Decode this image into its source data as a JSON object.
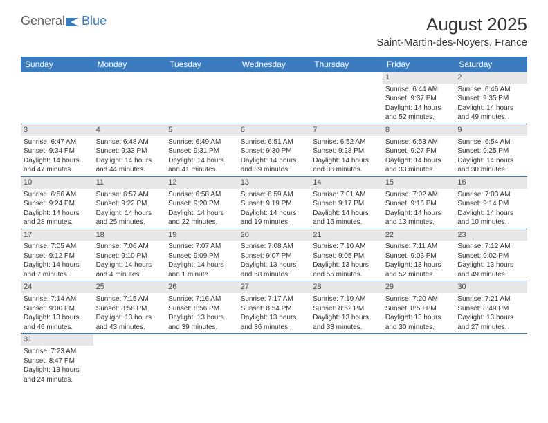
{
  "logo": {
    "text1": "General",
    "text2": "Blue"
  },
  "title": "August 2025",
  "location": "Saint-Martin-des-Noyers, France",
  "weekdays": [
    "Sunday",
    "Monday",
    "Tuesday",
    "Wednesday",
    "Thursday",
    "Friday",
    "Saturday"
  ],
  "colors": {
    "header_bg": "#3b7bbf",
    "header_fg": "#ffffff",
    "daynum_bg": "#e8e8e8",
    "row_border": "#3b7bbf",
    "text": "#333333"
  },
  "grid": [
    [
      null,
      null,
      null,
      null,
      null,
      {
        "n": "1",
        "sr": "Sunrise: 6:44 AM",
        "ss": "Sunset: 9:37 PM",
        "dl1": "Daylight: 14 hours",
        "dl2": "and 52 minutes."
      },
      {
        "n": "2",
        "sr": "Sunrise: 6:46 AM",
        "ss": "Sunset: 9:35 PM",
        "dl1": "Daylight: 14 hours",
        "dl2": "and 49 minutes."
      }
    ],
    [
      {
        "n": "3",
        "sr": "Sunrise: 6:47 AM",
        "ss": "Sunset: 9:34 PM",
        "dl1": "Daylight: 14 hours",
        "dl2": "and 47 minutes."
      },
      {
        "n": "4",
        "sr": "Sunrise: 6:48 AM",
        "ss": "Sunset: 9:33 PM",
        "dl1": "Daylight: 14 hours",
        "dl2": "and 44 minutes."
      },
      {
        "n": "5",
        "sr": "Sunrise: 6:49 AM",
        "ss": "Sunset: 9:31 PM",
        "dl1": "Daylight: 14 hours",
        "dl2": "and 41 minutes."
      },
      {
        "n": "6",
        "sr": "Sunrise: 6:51 AM",
        "ss": "Sunset: 9:30 PM",
        "dl1": "Daylight: 14 hours",
        "dl2": "and 39 minutes."
      },
      {
        "n": "7",
        "sr": "Sunrise: 6:52 AM",
        "ss": "Sunset: 9:28 PM",
        "dl1": "Daylight: 14 hours",
        "dl2": "and 36 minutes."
      },
      {
        "n": "8",
        "sr": "Sunrise: 6:53 AM",
        "ss": "Sunset: 9:27 PM",
        "dl1": "Daylight: 14 hours",
        "dl2": "and 33 minutes."
      },
      {
        "n": "9",
        "sr": "Sunrise: 6:54 AM",
        "ss": "Sunset: 9:25 PM",
        "dl1": "Daylight: 14 hours",
        "dl2": "and 30 minutes."
      }
    ],
    [
      {
        "n": "10",
        "sr": "Sunrise: 6:56 AM",
        "ss": "Sunset: 9:24 PM",
        "dl1": "Daylight: 14 hours",
        "dl2": "and 28 minutes."
      },
      {
        "n": "11",
        "sr": "Sunrise: 6:57 AM",
        "ss": "Sunset: 9:22 PM",
        "dl1": "Daylight: 14 hours",
        "dl2": "and 25 minutes."
      },
      {
        "n": "12",
        "sr": "Sunrise: 6:58 AM",
        "ss": "Sunset: 9:20 PM",
        "dl1": "Daylight: 14 hours",
        "dl2": "and 22 minutes."
      },
      {
        "n": "13",
        "sr": "Sunrise: 6:59 AM",
        "ss": "Sunset: 9:19 PM",
        "dl1": "Daylight: 14 hours",
        "dl2": "and 19 minutes."
      },
      {
        "n": "14",
        "sr": "Sunrise: 7:01 AM",
        "ss": "Sunset: 9:17 PM",
        "dl1": "Daylight: 14 hours",
        "dl2": "and 16 minutes."
      },
      {
        "n": "15",
        "sr": "Sunrise: 7:02 AM",
        "ss": "Sunset: 9:16 PM",
        "dl1": "Daylight: 14 hours",
        "dl2": "and 13 minutes."
      },
      {
        "n": "16",
        "sr": "Sunrise: 7:03 AM",
        "ss": "Sunset: 9:14 PM",
        "dl1": "Daylight: 14 hours",
        "dl2": "and 10 minutes."
      }
    ],
    [
      {
        "n": "17",
        "sr": "Sunrise: 7:05 AM",
        "ss": "Sunset: 9:12 PM",
        "dl1": "Daylight: 14 hours",
        "dl2": "and 7 minutes."
      },
      {
        "n": "18",
        "sr": "Sunrise: 7:06 AM",
        "ss": "Sunset: 9:10 PM",
        "dl1": "Daylight: 14 hours",
        "dl2": "and 4 minutes."
      },
      {
        "n": "19",
        "sr": "Sunrise: 7:07 AM",
        "ss": "Sunset: 9:09 PM",
        "dl1": "Daylight: 14 hours",
        "dl2": "and 1 minute."
      },
      {
        "n": "20",
        "sr": "Sunrise: 7:08 AM",
        "ss": "Sunset: 9:07 PM",
        "dl1": "Daylight: 13 hours",
        "dl2": "and 58 minutes."
      },
      {
        "n": "21",
        "sr": "Sunrise: 7:10 AM",
        "ss": "Sunset: 9:05 PM",
        "dl1": "Daylight: 13 hours",
        "dl2": "and 55 minutes."
      },
      {
        "n": "22",
        "sr": "Sunrise: 7:11 AM",
        "ss": "Sunset: 9:03 PM",
        "dl1": "Daylight: 13 hours",
        "dl2": "and 52 minutes."
      },
      {
        "n": "23",
        "sr": "Sunrise: 7:12 AM",
        "ss": "Sunset: 9:02 PM",
        "dl1": "Daylight: 13 hours",
        "dl2": "and 49 minutes."
      }
    ],
    [
      {
        "n": "24",
        "sr": "Sunrise: 7:14 AM",
        "ss": "Sunset: 9:00 PM",
        "dl1": "Daylight: 13 hours",
        "dl2": "and 46 minutes."
      },
      {
        "n": "25",
        "sr": "Sunrise: 7:15 AM",
        "ss": "Sunset: 8:58 PM",
        "dl1": "Daylight: 13 hours",
        "dl2": "and 43 minutes."
      },
      {
        "n": "26",
        "sr": "Sunrise: 7:16 AM",
        "ss": "Sunset: 8:56 PM",
        "dl1": "Daylight: 13 hours",
        "dl2": "and 39 minutes."
      },
      {
        "n": "27",
        "sr": "Sunrise: 7:17 AM",
        "ss": "Sunset: 8:54 PM",
        "dl1": "Daylight: 13 hours",
        "dl2": "and 36 minutes."
      },
      {
        "n": "28",
        "sr": "Sunrise: 7:19 AM",
        "ss": "Sunset: 8:52 PM",
        "dl1": "Daylight: 13 hours",
        "dl2": "and 33 minutes."
      },
      {
        "n": "29",
        "sr": "Sunrise: 7:20 AM",
        "ss": "Sunset: 8:50 PM",
        "dl1": "Daylight: 13 hours",
        "dl2": "and 30 minutes."
      },
      {
        "n": "30",
        "sr": "Sunrise: 7:21 AM",
        "ss": "Sunset: 8:49 PM",
        "dl1": "Daylight: 13 hours",
        "dl2": "and 27 minutes."
      }
    ],
    [
      {
        "n": "31",
        "sr": "Sunrise: 7:23 AM",
        "ss": "Sunset: 8:47 PM",
        "dl1": "Daylight: 13 hours",
        "dl2": "and 24 minutes."
      },
      null,
      null,
      null,
      null,
      null,
      null
    ]
  ]
}
